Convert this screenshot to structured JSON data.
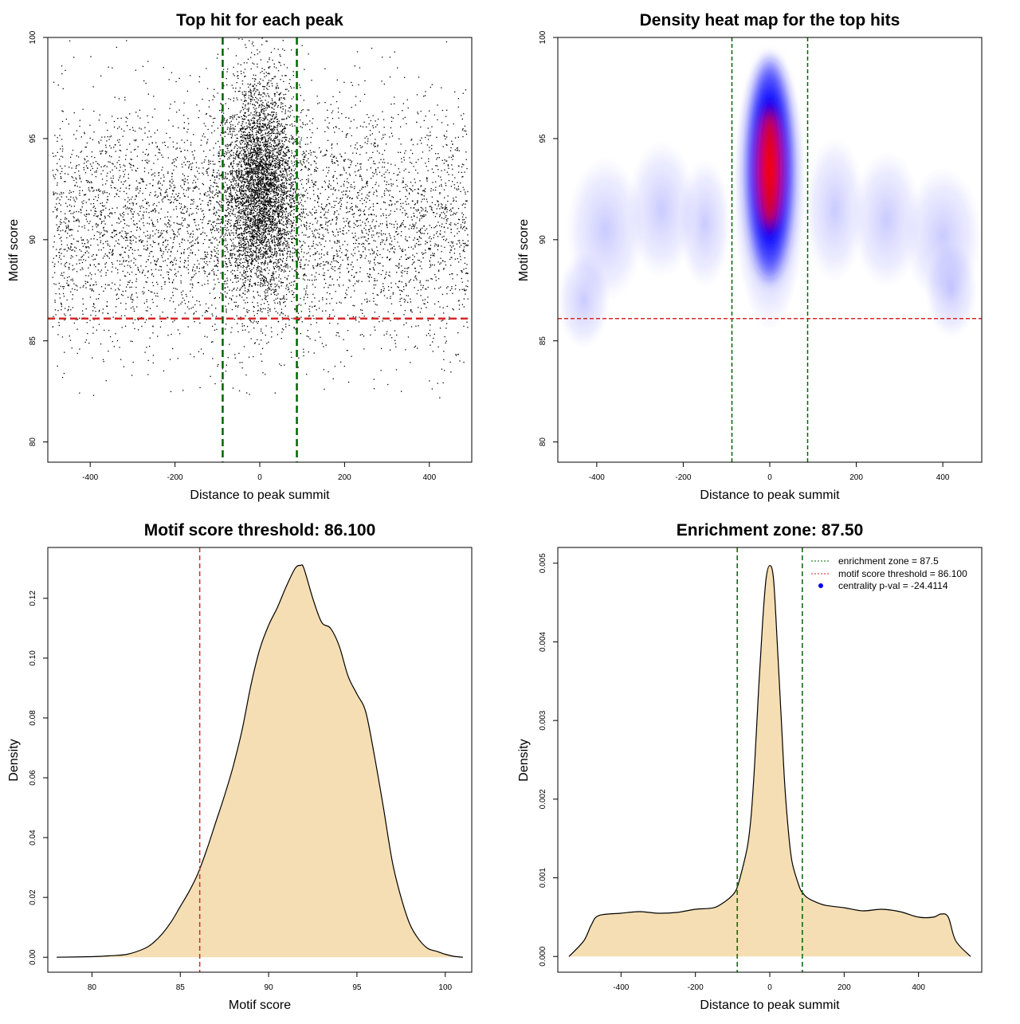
{
  "chart_data": [
    {
      "panel": "top-left",
      "type": "scatter",
      "title": "Top hit for each peak",
      "xlabel": "Distance to peak summit",
      "ylabel": "Motif score",
      "xlim": [
        -500,
        500
      ],
      "ylim": [
        79,
        100
      ],
      "xticks": [
        -400,
        -200,
        0,
        200,
        400
      ],
      "yticks": [
        80,
        85,
        90,
        95,
        100
      ],
      "xtick_labels": [
        "-400",
        "-200",
        "0",
        "200",
        "400"
      ],
      "ytick_labels": [
        "80",
        "85",
        "90",
        "95",
        "100"
      ],
      "vlines": [
        -87.5,
        87.5
      ],
      "vline_color": "#006400",
      "hline": 86.1,
      "hline_color": "#d62728",
      "point_color": "#000000",
      "summary": {
        "n_points_approx": 10000,
        "central_cluster_x": [
          -87.5,
          87.5
        ],
        "central_cluster_y": [
          88,
          98
        ],
        "background_y_range": [
          82,
          98
        ]
      }
    },
    {
      "panel": "top-right",
      "type": "heatmap",
      "title": "Density heat map for the top hits",
      "xlabel": "Distance to peak summit",
      "ylabel": "Motif score",
      "xlim": [
        -490,
        490
      ],
      "ylim": [
        79,
        100
      ],
      "xticks": [
        -400,
        -200,
        0,
        200,
        400
      ],
      "yticks": [
        80,
        85,
        90,
        95,
        100
      ],
      "xtick_labels": [
        "-400",
        "-200",
        "0",
        "200",
        "400"
      ],
      "ytick_labels": [
        "80",
        "85",
        "90",
        "95",
        "100"
      ],
      "vlines": [
        -87.5,
        87.5
      ],
      "vline_color": "#006400",
      "hline": 86.1,
      "hline_color": "#d62728",
      "color_ramp": [
        "#ffffff",
        "#0000ff",
        "#ff0000"
      ],
      "peak": {
        "x": 0,
        "y": 93.5
      }
    },
    {
      "panel": "bottom-left",
      "type": "area",
      "title": "Motif score threshold: 86.100",
      "xlabel": "Motif score",
      "ylabel": "Density",
      "xlim": [
        77.5,
        101.5
      ],
      "ylim": [
        -0.005,
        0.137
      ],
      "xticks": [
        80,
        85,
        90,
        95,
        100
      ],
      "yticks": [
        0,
        0.02,
        0.04,
        0.06,
        0.08,
        0.1,
        0.12
      ],
      "xtick_labels": [
        "80",
        "85",
        "90",
        "95",
        "100"
      ],
      "ytick_labels": [
        "0.00",
        "0.02",
        "0.04",
        "0.06",
        "0.08",
        "0.10",
        "0.12"
      ],
      "vline": 86.1,
      "vline_color": "#d62728",
      "fill_color": "#f5deb3",
      "x": [
        78,
        80,
        81,
        82,
        83,
        83.5,
        84,
        84.5,
        85,
        85.5,
        86,
        86.5,
        87,
        87.5,
        88,
        88.5,
        89,
        89.5,
        90,
        90.5,
        91,
        91.5,
        91.8,
        92,
        92.5,
        93,
        93.5,
        94,
        94.5,
        95,
        95.5,
        96,
        96.5,
        97,
        97.5,
        98,
        98.5,
        99,
        99.5,
        100,
        100.5,
        101
      ],
      "y": [
        0,
        0.0002,
        0.0005,
        0.001,
        0.003,
        0.005,
        0.008,
        0.012,
        0.017,
        0.022,
        0.028,
        0.036,
        0.045,
        0.054,
        0.064,
        0.076,
        0.091,
        0.103,
        0.111,
        0.117,
        0.124,
        0.13,
        0.131,
        0.13,
        0.12,
        0.112,
        0.11,
        0.104,
        0.094,
        0.088,
        0.082,
        0.067,
        0.05,
        0.032,
        0.02,
        0.011,
        0.006,
        0.003,
        0.002,
        0.001,
        0.0003,
        0
      ]
    },
    {
      "panel": "bottom-right",
      "type": "area",
      "title": "Enrichment zone: 87.50",
      "xlabel": "Distance to peak summit",
      "ylabel": "Density",
      "xlim": [
        -570,
        570
      ],
      "ylim": [
        -0.0002,
        0.0052
      ],
      "xticks": [
        -400,
        -200,
        0,
        200,
        400
      ],
      "yticks": [
        0,
        0.001,
        0.002,
        0.003,
        0.004,
        0.005
      ],
      "xtick_labels": [
        "-400",
        "-200",
        "0",
        "200",
        "400"
      ],
      "ytick_labels": [
        "0.000",
        "0.001",
        "0.002",
        "0.003",
        "0.004",
        "0.005"
      ],
      "vlines": [
        -87.5,
        87.5
      ],
      "vline_color": "#006400",
      "fill_color": "#f5deb3",
      "x": [
        -540,
        -500,
        -480,
        -460,
        -400,
        -350,
        -300,
        -250,
        -200,
        -150,
        -120,
        -100,
        -90,
        -80,
        -60,
        -50,
        -40,
        -30,
        -20,
        -10,
        0,
        10,
        20,
        30,
        40,
        50,
        60,
        80,
        90,
        100,
        120,
        150,
        200,
        250,
        300,
        350,
        400,
        440,
        460,
        480,
        500,
        540
      ],
      "y": [
        0,
        0.0002,
        0.0004,
        0.00052,
        0.00055,
        0.00057,
        0.00055,
        0.00056,
        0.0006,
        0.00062,
        0.0007,
        0.00078,
        0.00085,
        0.001,
        0.0014,
        0.0018,
        0.0025,
        0.0034,
        0.0042,
        0.0048,
        0.00497,
        0.0048,
        0.004,
        0.0031,
        0.0022,
        0.0016,
        0.0012,
        0.00088,
        0.0008,
        0.00075,
        0.0007,
        0.00065,
        0.00062,
        0.00058,
        0.0006,
        0.00057,
        0.0005,
        0.0005,
        0.00054,
        0.0005,
        0.0002,
        0
      ]
    }
  ],
  "legend": {
    "items": [
      {
        "label": "enrichment zone = 87.5",
        "style": "dotted-line",
        "color": "#006400"
      },
      {
        "label": "motif score threshold = 86.100",
        "style": "dotted-line",
        "color": "#d62728"
      },
      {
        "label": "centrality p-val = -24.4114",
        "style": "point",
        "color": "#0000ff"
      }
    ]
  }
}
